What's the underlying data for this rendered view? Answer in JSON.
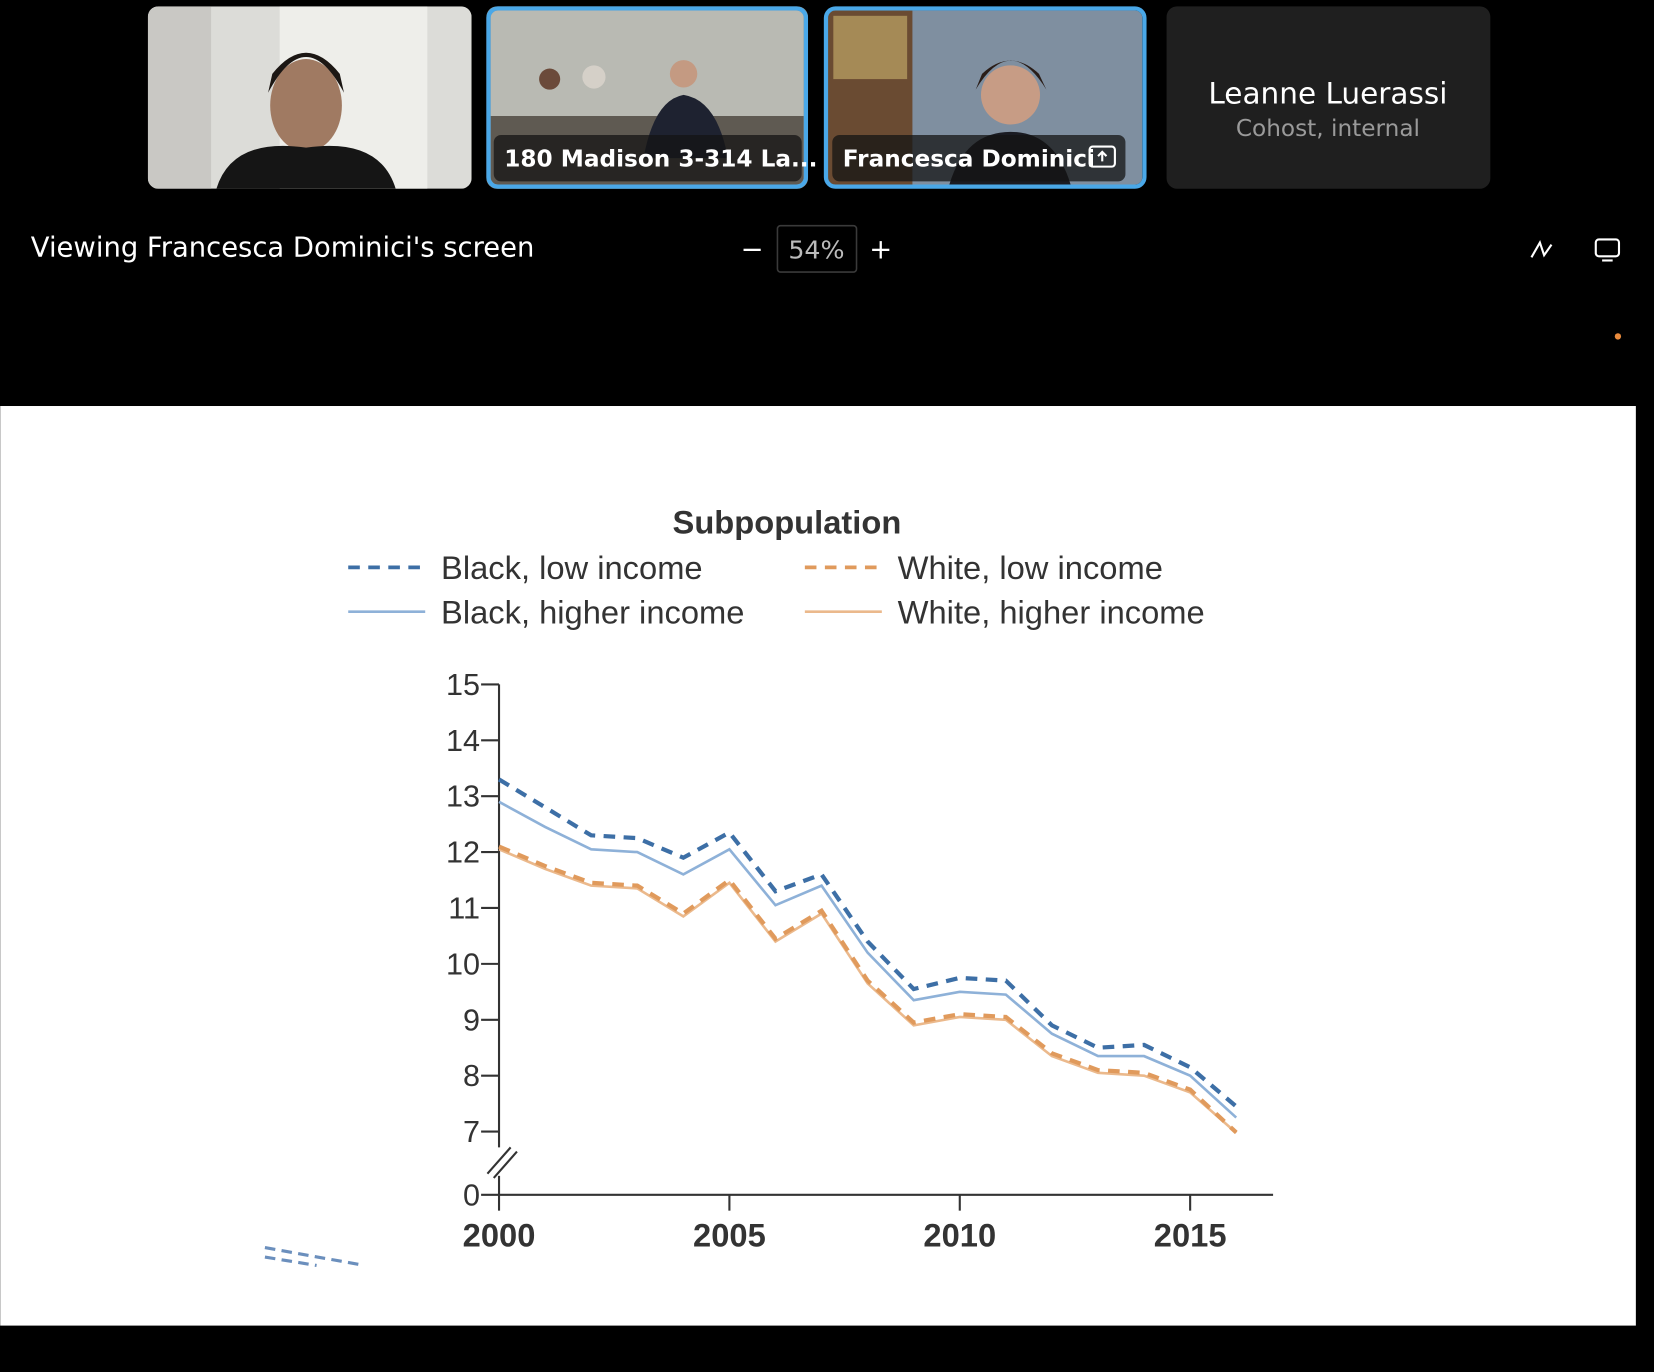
{
  "tiles": [
    {
      "name": "180 Madison 3-314 La..."
    },
    {
      "name": "Francesca Dominici"
    },
    {
      "name": "Leanne Luerassi",
      "role": "Cohost, internal"
    }
  ],
  "toolbar": {
    "title": "Viewing Francesca Dominici's screen",
    "zoom_out": "−",
    "zoom": "54%",
    "zoom_in": "+"
  },
  "chart_data": {
    "type": "line",
    "legend_title": "Subpopulation",
    "x": [
      2000,
      2001,
      2002,
      2003,
      2004,
      2005,
      2006,
      2007,
      2008,
      2009,
      2010,
      2011,
      2012,
      2013,
      2014,
      2015,
      2016
    ],
    "xlim": [
      2000,
      2016.8
    ],
    "xticks": [
      2000,
      2005,
      2010,
      2015
    ],
    "ylim": [
      0,
      15
    ],
    "ybreak": [
      0,
      7
    ],
    "yticks": [
      0,
      7,
      8,
      9,
      10,
      11,
      12,
      13,
      14,
      15
    ],
    "series": [
      {
        "name": "Black, low income",
        "color": "#3d6fa6",
        "style": "dashed",
        "values": [
          13.3,
          12.8,
          12.3,
          12.25,
          11.9,
          12.35,
          11.3,
          11.6,
          10.4,
          9.55,
          9.75,
          9.7,
          8.9,
          8.5,
          8.55,
          8.15,
          7.45
        ]
      },
      {
        "name": "White, low income",
        "color": "#e09a5c",
        "style": "dashed",
        "values": [
          12.1,
          11.75,
          11.45,
          11.4,
          10.9,
          11.5,
          10.45,
          10.95,
          9.7,
          8.95,
          9.1,
          9.05,
          8.4,
          8.1,
          8.05,
          7.75,
          6.9
        ]
      },
      {
        "name": "Black, higher income",
        "color": "#8eb1d8",
        "style": "solid",
        "values": [
          12.9,
          12.45,
          12.05,
          12.0,
          11.6,
          12.05,
          11.05,
          11.4,
          10.2,
          9.35,
          9.5,
          9.45,
          8.75,
          8.35,
          8.35,
          8.0,
          7.25
        ]
      },
      {
        "name": "White, higher income",
        "color": "#ebb98c",
        "style": "solid",
        "values": [
          12.05,
          11.7,
          11.4,
          11.35,
          10.85,
          11.45,
          10.4,
          10.9,
          9.65,
          8.9,
          9.05,
          9.0,
          8.35,
          8.05,
          8.0,
          7.7,
          6.85
        ]
      }
    ]
  }
}
